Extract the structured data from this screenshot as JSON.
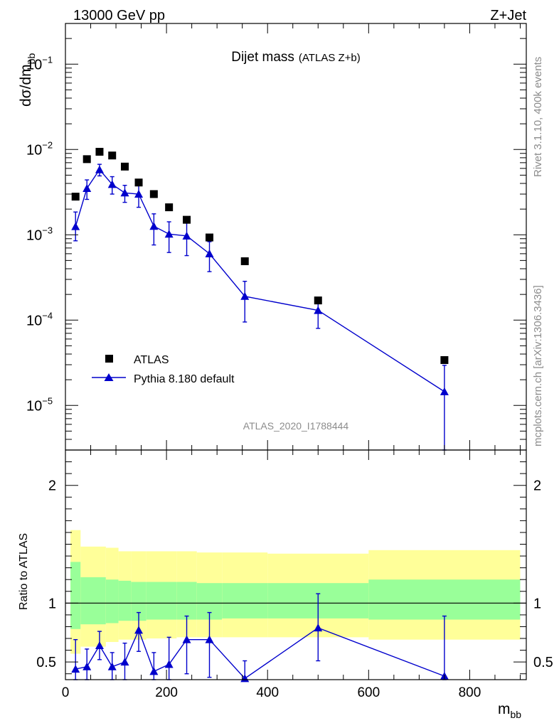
{
  "header": {
    "left": "13000 GeV pp",
    "right": "Z+Jet"
  },
  "side_labels": {
    "top": "Rivet 3.1.10,  400k events",
    "bottom": "mcplots.cern.ch [arXiv:1306.3436]"
  },
  "chart_data": [
    {
      "type": "scatter",
      "panel": "main",
      "title": "Dijet mass",
      "subtitle": "(ATLAS Z+b)",
      "ylabel": "dσ/dm",
      "ylabel_sub": "bb",
      "yscale": "log",
      "ylim": [
        3e-06,
        0.3
      ],
      "xlim": [
        0,
        912
      ],
      "analysis_tag": "ATLAS_2020_I1788444",
      "y_ticks": [
        {
          "v": 0.1,
          "m": "10",
          "e": "−1"
        },
        {
          "v": 0.01,
          "m": "10",
          "e": "−2"
        },
        {
          "v": 0.001,
          "m": "10",
          "e": "−3"
        },
        {
          "v": 0.0001,
          "m": "10",
          "e": "−4"
        },
        {
          "v": 1e-05,
          "m": "10",
          "e": "−5"
        }
      ],
      "legend": {
        "position": "lower-left"
      },
      "series": [
        {
          "name": "ATLAS",
          "marker": "square",
          "color": "#000000",
          "x": [
            20,
            42.5,
            67.5,
            92.5,
            117.5,
            145,
            175,
            205,
            240,
            285,
            355,
            500,
            750
          ],
          "y": [
            0.0028,
            0.0077,
            0.0094,
            0.0085,
            0.0063,
            0.0041,
            0.003,
            0.0021,
            0.0015,
            0.00093,
            0.00049,
            0.00017,
            3.4e-05
          ]
        },
        {
          "name": "Pythia 8.180 default",
          "marker": "triangle",
          "color": "#0000cc",
          "line": true,
          "x": [
            20,
            42.5,
            67.5,
            92.5,
            117.5,
            145,
            175,
            205,
            240,
            285,
            355,
            500,
            750
          ],
          "y": [
            0.00125,
            0.0035,
            0.0058,
            0.0039,
            0.0031,
            0.003,
            0.00126,
            0.00102,
            0.00097,
            0.0006,
            0.00019,
            0.00013,
            1.45e-05
          ],
          "yerr_low": [
            0.0004,
            0.0009,
            0.0009,
            0.0009,
            0.0007,
            0.0009,
            0.0005,
            0.0004,
            0.0004,
            0.00023,
            9.5e-05,
            5e-05,
            1.3e-05
          ],
          "yerr_high": [
            0.0006,
            0.0009,
            0.0009,
            0.0009,
            0.0007,
            0.0009,
            0.0005,
            0.0004,
            0.0004,
            0.00023,
            9.5e-05,
            5e-05,
            1.5e-05
          ]
        }
      ]
    },
    {
      "type": "line",
      "panel": "ratio",
      "ylabel": "Ratio to ATLAS",
      "xlabel": "m",
      "xlabel_sub": "bb",
      "ylim": [
        0.35,
        2.3
      ],
      "xlim": [
        0,
        912
      ],
      "x_ticks": [
        0,
        200,
        400,
        600,
        800
      ],
      "y_ticks": [
        {
          "v": 0.5,
          "label": "0.5"
        },
        {
          "v": 1,
          "label": "1"
        },
        {
          "v": 2,
          "label": "2"
        }
      ],
      "bands": {
        "yellow_color": "#ffff99",
        "green_color": "#99ff99",
        "bins": [
          {
            "x0": 10,
            "x1": 30,
            "outer_lo": 0.57,
            "outer_hi": 1.62,
            "inner_lo": 0.78,
            "inner_hi": 1.35
          },
          {
            "x0": 30,
            "x1": 80,
            "outer_lo": 0.63,
            "outer_hi": 1.48,
            "inner_lo": 0.82,
            "inner_hi": 1.22
          },
          {
            "x0": 80,
            "x1": 105,
            "outer_lo": 0.67,
            "outer_hi": 1.47,
            "inner_lo": 0.83,
            "inner_hi": 1.2
          },
          {
            "x0": 105,
            "x1": 130,
            "outer_lo": 0.69,
            "outer_hi": 1.44,
            "inner_lo": 0.85,
            "inner_hi": 1.19
          },
          {
            "x0": 130,
            "x1": 160,
            "outer_lo": 0.69,
            "outer_hi": 1.44,
            "inner_lo": 0.85,
            "inner_hi": 1.18
          },
          {
            "x0": 160,
            "x1": 190,
            "outer_lo": 0.7,
            "outer_hi": 1.44,
            "inner_lo": 0.86,
            "inner_hi": 1.18
          },
          {
            "x0": 190,
            "x1": 220,
            "outer_lo": 0.7,
            "outer_hi": 1.44,
            "inner_lo": 0.86,
            "inner_hi": 1.18
          },
          {
            "x0": 220,
            "x1": 260,
            "outer_lo": 0.71,
            "outer_hi": 1.44,
            "inner_lo": 0.86,
            "inner_hi": 1.18
          },
          {
            "x0": 260,
            "x1": 310,
            "outer_lo": 0.71,
            "outer_hi": 1.43,
            "inner_lo": 0.86,
            "inner_hi": 1.17
          },
          {
            "x0": 310,
            "x1": 400,
            "outer_lo": 0.71,
            "outer_hi": 1.43,
            "inner_lo": 0.87,
            "inner_hi": 1.17
          },
          {
            "x0": 400,
            "x1": 600,
            "outer_lo": 0.71,
            "outer_hi": 1.42,
            "inner_lo": 0.87,
            "inner_hi": 1.17
          },
          {
            "x0": 600,
            "x1": 900,
            "outer_lo": 0.69,
            "outer_hi": 1.45,
            "inner_lo": 0.86,
            "inner_hi": 1.2
          }
        ]
      },
      "series": [
        {
          "name": "Pythia 8.180 default",
          "color": "#0000cc",
          "x": [
            20,
            42.5,
            67.5,
            92.5,
            117.5,
            145,
            175,
            205,
            240,
            285,
            355,
            500,
            750
          ],
          "y": [
            0.44,
            0.46,
            0.64,
            0.46,
            0.5,
            0.77,
            0.42,
            0.48,
            0.69,
            0.69,
            0.36,
            0.79,
            0.38
          ],
          "yerr_low": [
            0.14,
            0.13,
            0.12,
            0.12,
            0.15,
            0.18,
            0.15,
            0.18,
            0.29,
            0.32,
            0.15,
            0.28,
            0.25
          ],
          "yerr_high": [
            0.25,
            0.15,
            0.12,
            0.12,
            0.16,
            0.15,
            0.16,
            0.23,
            0.2,
            0.23,
            0.15,
            0.29,
            0.51
          ]
        }
      ]
    }
  ]
}
